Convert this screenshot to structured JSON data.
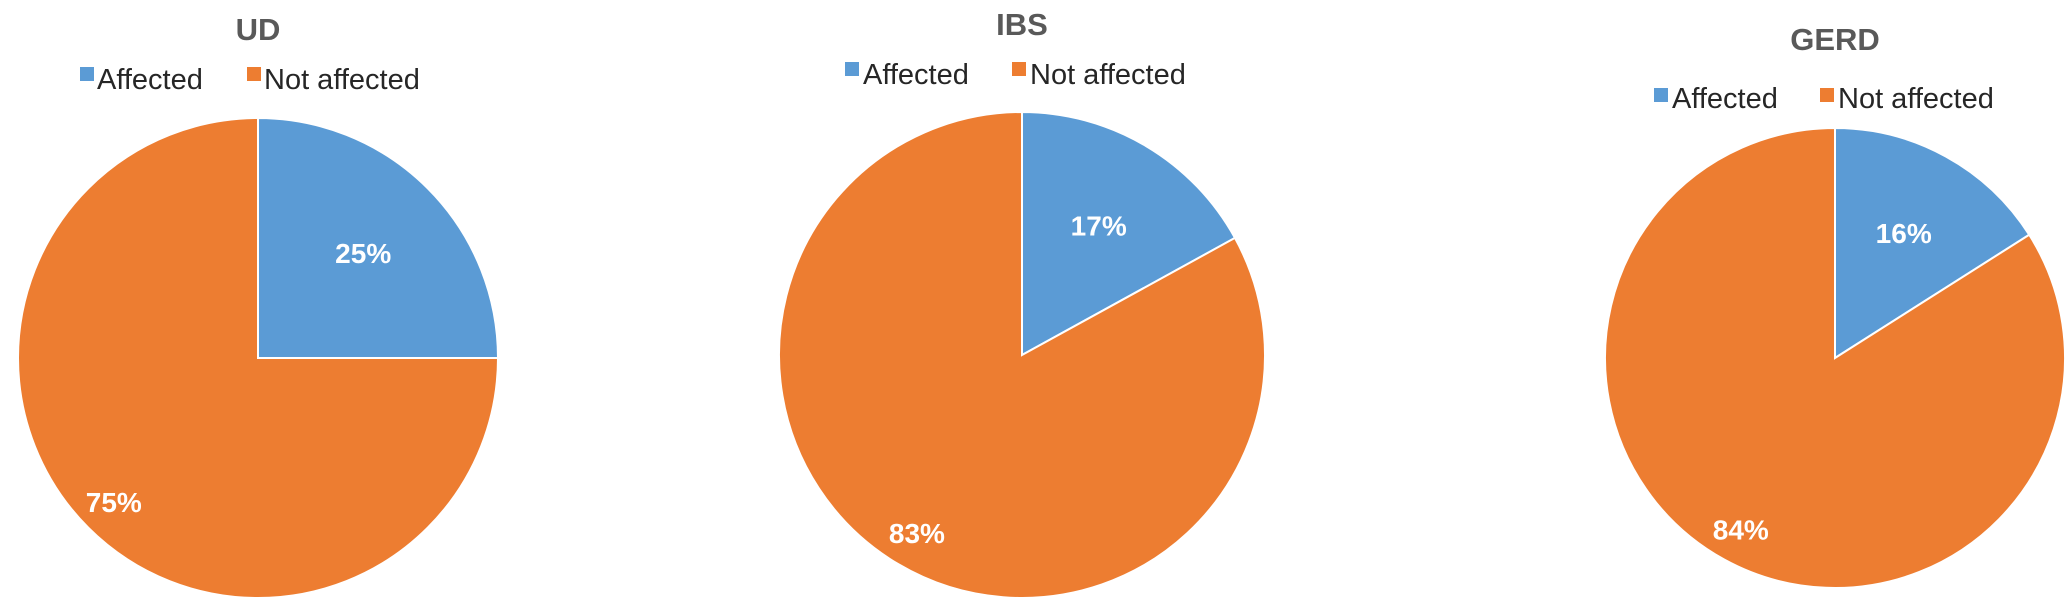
{
  "colors": {
    "affected": "#5b9bd5",
    "not_affected": "#ed7d31"
  },
  "chart_data": [
    {
      "type": "pie",
      "title": "UD",
      "legend": [
        "Affected",
        "Not affected"
      ],
      "legend_position": "top",
      "slices": [
        {
          "label": "Affected",
          "value": 25,
          "display": "25%"
        },
        {
          "label": "Not affected",
          "value": 75,
          "display": "75%"
        }
      ]
    },
    {
      "type": "pie",
      "title": "IBS",
      "legend": [
        "Affected",
        "Not affected"
      ],
      "legend_position": "top",
      "slices": [
        {
          "label": "Affected",
          "value": 17,
          "display": "17%"
        },
        {
          "label": "Not affected",
          "value": 83,
          "display": "83%"
        }
      ]
    },
    {
      "type": "pie",
      "title": "GERD",
      "legend": [
        "Affected",
        "Not affected"
      ],
      "legend_position": "top",
      "slices": [
        {
          "label": "Affected",
          "value": 16,
          "display": "16%"
        },
        {
          "label": "Not affected",
          "value": 84,
          "display": "84%"
        }
      ]
    }
  ]
}
